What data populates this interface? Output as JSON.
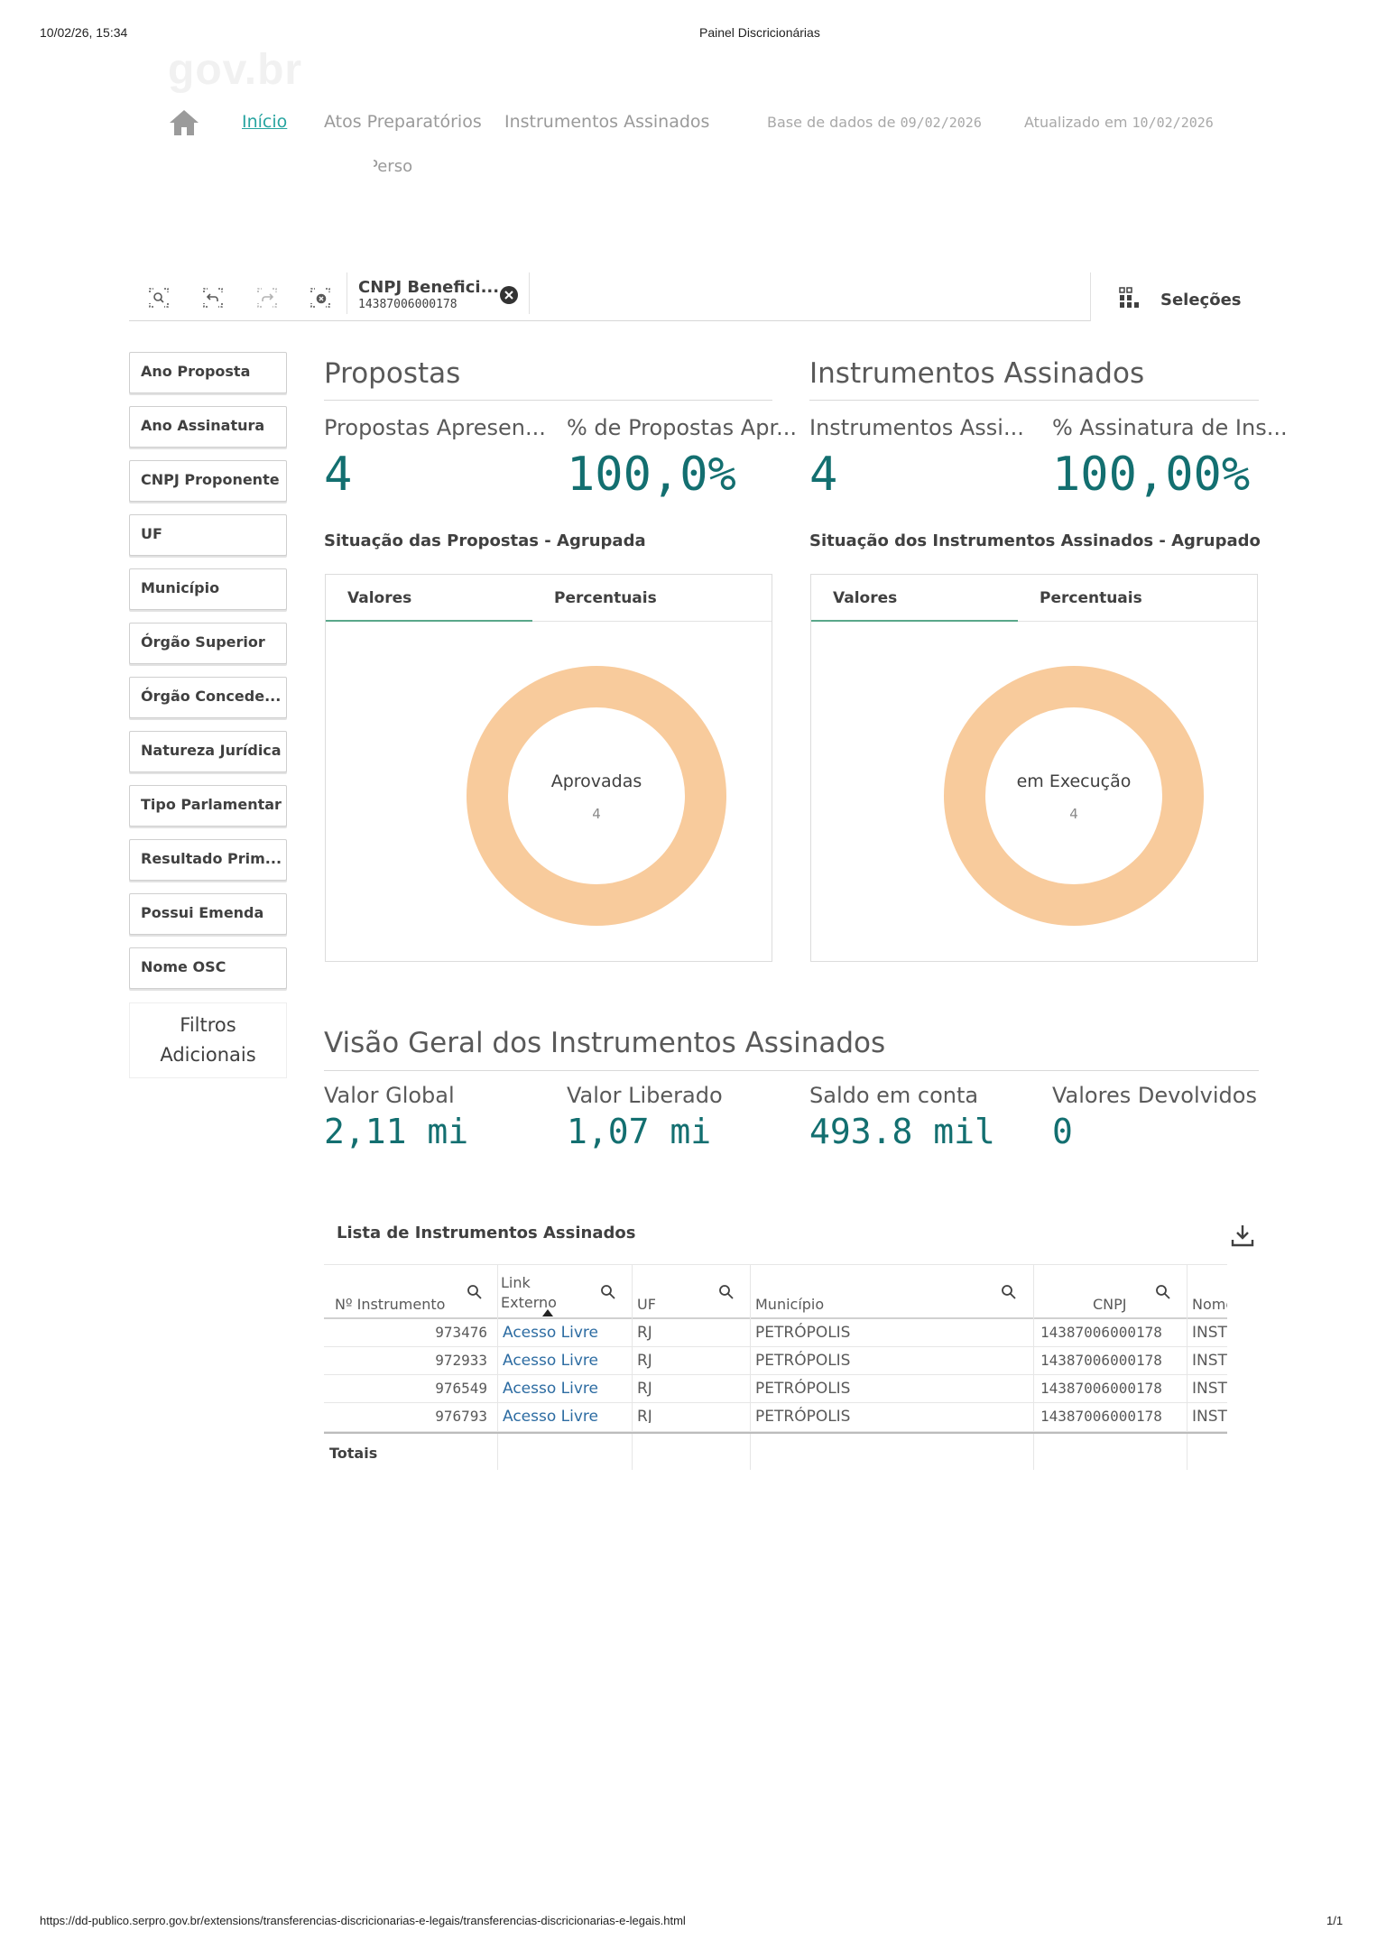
{
  "print_header": {
    "datetime": "10/02/26, 15:34",
    "title": "Painel Discricionárias"
  },
  "print_footer": {
    "url": "https://dd-publico.serpro.gov.br/extensions/transferencias-discricionarias-e-legais/transferencias-discricionarias-e-legais.html",
    "page": "1/1"
  },
  "nav": {
    "logo_text": "gov.br",
    "links": [
      "Início",
      "Atos Preparatórios",
      "Instrumentos Assinados"
    ],
    "sub_link": "Perso",
    "base_label": "Base de dados de",
    "base_date": "09/02/2026",
    "updated_label": "Atualizado em",
    "updated_date": "10/02/2026"
  },
  "selection_bar": {
    "field": "CNPJ Benefici...",
    "value": "14387006000178",
    "selections_label": "Seleções"
  },
  "filters": [
    "Ano Proposta",
    "Ano Assinatura",
    "CNPJ Proponente",
    "UF",
    "Município",
    "Órgão Superior",
    "Órgão Concede...",
    "Natureza Jurídica",
    "Tipo Parlamentar",
    "Resultado Prim...",
    "Possui Emenda",
    "Nome OSC"
  ],
  "extra_filters": {
    "line1": "Filtros",
    "line2": "Adicionais"
  },
  "propostas": {
    "title": "Propostas",
    "kpi1_label": "Propostas Apresen...",
    "kpi1_value": "4",
    "kpi2_label": "% de Propostas Apr...",
    "kpi2_value": "100,0%",
    "chart_title": "Situação das Propostas - Agrupada",
    "tab_values": "Valores",
    "tab_percent": "Percentuais",
    "donut_label": "Aprovadas",
    "donut_value": "4"
  },
  "instrumentos": {
    "title": "Instrumentos Assinados",
    "kpi1_label": "Instrumentos Assi...",
    "kpi1_value": "4",
    "kpi2_label": "% Assinatura de Ins...",
    "kpi2_value": "100,00%",
    "chart_title": "Situação dos Instrumentos Assinados - Agrupado",
    "tab_values": "Valores",
    "tab_percent": "Percentuais",
    "donut_label": "em Execução",
    "donut_value": "4"
  },
  "visao_geral": {
    "title": "Visão Geral dos Instrumentos Assinados",
    "valor_global_label": "Valor Global",
    "valor_global": "2,11 mi",
    "valor_liberado_label": "Valor Liberado",
    "valor_liberado": "1,07 mi",
    "saldo_label": "Saldo em conta",
    "saldo": "493.8 mil",
    "devolvidos_label": "Valores Devolvidos",
    "devolvidos": "0"
  },
  "table": {
    "title": "Lista de Instrumentos Assinados",
    "headers": {
      "numero": "Nº Instrumento",
      "link_1": "Link",
      "link_2": "Externo",
      "uf": "UF",
      "municipio": "Município",
      "cnpj": "CNPJ",
      "nome": "Nome"
    },
    "rows": [
      {
        "numero": "973476",
        "link": "Acesso Livre",
        "uf": "RJ",
        "municipio": "PETRÓPOLIS",
        "cnpj": "14387006000178",
        "nome": "INST"
      },
      {
        "numero": "972933",
        "link": "Acesso Livre",
        "uf": "RJ",
        "municipio": "PETRÓPOLIS",
        "cnpj": "14387006000178",
        "nome": "INST"
      },
      {
        "numero": "976549",
        "link": "Acesso Livre",
        "uf": "RJ",
        "municipio": "PETRÓPOLIS",
        "cnpj": "14387006000178",
        "nome": "INST"
      },
      {
        "numero": "976793",
        "link": "Acesso Livre",
        "uf": "RJ",
        "municipio": "PETRÓPOLIS",
        "cnpj": "14387006000178",
        "nome": "INST"
      }
    ],
    "totals_label": "Totais"
  },
  "colors": {
    "accent_teal": "#136f70",
    "link_teal": "#27a4a0",
    "donut": "#f8cb9c",
    "tab_underline": "#59a78a"
  }
}
